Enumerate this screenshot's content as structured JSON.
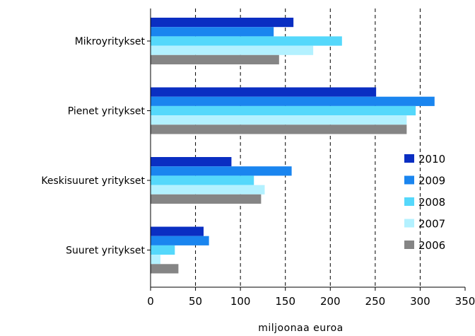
{
  "chart_data": {
    "type": "bar",
    "orientation": "horizontal",
    "categories": [
      "Mikroyritykset",
      "Pienet yritykset",
      "Keskisuuret yritykset",
      "Suuret yritykset"
    ],
    "series": [
      {
        "name": "2010",
        "color": "#0a2ec2",
        "values": [
          159,
          251,
          90,
          59
        ]
      },
      {
        "name": "2009",
        "color": "#1a85ef",
        "values": [
          137,
          316,
          157,
          65
        ]
      },
      {
        "name": "2008",
        "color": "#55d8fb",
        "values": [
          213,
          295,
          115,
          27
        ]
      },
      {
        "name": "2007",
        "color": "#b3f1ff",
        "values": [
          181,
          285,
          127,
          11
        ]
      },
      {
        "name": "2006",
        "color": "#858585",
        "values": [
          143,
          285,
          123,
          31
        ]
      }
    ],
    "xlim": [
      0,
      350
    ],
    "xticks": [
      "0",
      "50",
      "100",
      "150",
      "200",
      "250",
      "300",
      "350"
    ],
    "xlabel": "miljoonaa euroa",
    "grid": "vertical dashed",
    "legend_position": "right"
  }
}
